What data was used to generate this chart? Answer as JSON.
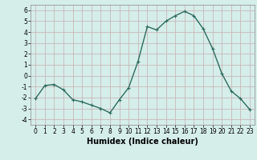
{
  "x": [
    0,
    1,
    2,
    3,
    4,
    5,
    6,
    7,
    8,
    9,
    10,
    11,
    12,
    13,
    14,
    15,
    16,
    17,
    18,
    19,
    20,
    21,
    22,
    23
  ],
  "y": [
    -2.1,
    -0.9,
    -0.8,
    -1.3,
    -2.2,
    -2.4,
    -2.7,
    -3.0,
    -3.4,
    -2.2,
    -1.1,
    1.3,
    4.5,
    4.2,
    5.0,
    5.5,
    5.9,
    5.5,
    4.3,
    2.5,
    0.2,
    -1.4,
    -2.1,
    -3.1
  ],
  "line_color": "#2d6b5e",
  "marker": "+",
  "marker_size": 3,
  "bg_color": "#d5eeea",
  "grid_color": "#c8b8b8",
  "xlabel": "Humidex (Indice chaleur)",
  "ylim": [
    -4.5,
    6.5
  ],
  "xlim": [
    -0.5,
    23.5
  ],
  "yticks": [
    -4,
    -3,
    -2,
    -1,
    0,
    1,
    2,
    3,
    4,
    5,
    6
  ],
  "xticks": [
    0,
    1,
    2,
    3,
    4,
    5,
    6,
    7,
    8,
    9,
    10,
    11,
    12,
    13,
    14,
    15,
    16,
    17,
    18,
    19,
    20,
    21,
    22,
    23
  ],
  "tick_fontsize": 5.5,
  "label_fontsize": 7,
  "line_width": 1.0,
  "spine_color": "#888888"
}
